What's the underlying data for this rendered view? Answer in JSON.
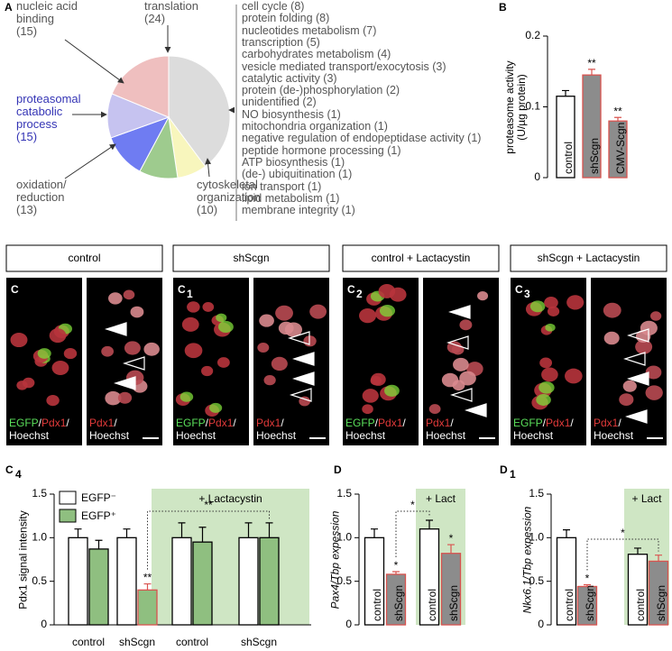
{
  "chart_data": [
    {
      "type": "pie",
      "panel_label": "A",
      "categories": [
        null,
        "cytoskeletal\norganization",
        "oxidation/\nreduction",
        "proteasomal\ncatabolic\nprocess",
        "nucleic acid\nbinding",
        "translation"
      ],
      "values": [
        51,
        10,
        13,
        15,
        15,
        24
      ],
      "value_labels": [
        null,
        "(10)",
        "(13)",
        "(15)",
        "(15)",
        "(24)"
      ],
      "colors": [
        "#dcdcdc",
        "#f8f6bd",
        "#9ecb8e",
        "#6f7cf2",
        "#c6c3f0",
        "#efbfbf"
      ],
      "label_colors": [
        null,
        "#555555",
        "#555555",
        "#3535b5",
        "#555555",
        "#555555"
      ],
      "other_categories": [
        "cell cycle (8)",
        "protein folding (8)",
        "nucleotides metabolism (7)",
        "transcription (5)",
        "carbohydrates metabolism (4)",
        "vesicle mediated transport/exocytosis (3)",
        "catalytic activity (3)",
        "protein (de-)phosphorylation (2)",
        "unidentified (2)",
        "NO biosynthesis (1)",
        "mitochondria organization (1)",
        "negative regulation of endopeptidase activity (1)",
        "peptide hormone processing (1)",
        "ATP biosynthesis (1)",
        "(de-) ubiquitination (1)",
        "ion transport (1)",
        "lipid metabolism (1)",
        "membrane integrity (1)"
      ]
    },
    {
      "type": "bar",
      "panel_label": "B",
      "ylabel": "proteasome activity\n(U/µg protein)",
      "categories": [
        "control",
        "shScgn",
        "CMV-Scgn"
      ],
      "values": [
        0.115,
        0.145,
        0.08
      ],
      "errors": [
        0.008,
        0.008,
        0.005
      ],
      "colors": [
        "#ffffff",
        "#8c8c8c",
        "#8c8c8c"
      ],
      "edge_colors": [
        "#000000",
        "#d9534f",
        "#d9534f"
      ],
      "annotations": [
        null,
        "**",
        "**"
      ],
      "ylim": [
        0,
        0.2
      ],
      "yticks": [
        0,
        0.1,
        0.2
      ]
    },
    {
      "type": "grouped_bar",
      "panel_label": "C",
      "panel_label_sub": "4",
      "ylabel": "Pdx1 signal intensity",
      "categories": [
        "control",
        "shScgn",
        "control",
        "shScgn"
      ],
      "series": [
        {
          "name": "EGFP⁻",
          "color": "#ffffff",
          "edge_colors": [
            "#000000",
            "#000000",
            "#000000",
            "#000000"
          ],
          "values": [
            1.0,
            1.0,
            1.0,
            1.0
          ],
          "errors": [
            0.1,
            0.1,
            0.17,
            0.17
          ],
          "annotations": [
            null,
            null,
            null,
            null
          ]
        },
        {
          "name": "EGFP⁺",
          "color": "#8fbf80",
          "edge_colors": [
            "#000000",
            "#d9534f",
            "#000000",
            "#000000"
          ],
          "values": [
            0.87,
            0.4,
            0.95,
            1.0
          ],
          "errors": [
            0.1,
            0.07,
            0.17,
            0.17
          ],
          "annotations": [
            null,
            "**",
            null,
            null
          ]
        }
      ],
      "ylim": [
        0,
        1.5
      ],
      "yticks": [
        0,
        0.5,
        {
          "value": 1,
          "label": "1.0"
        },
        1.5
      ],
      "shaded_label": "+ Lactacystin",
      "shaded_from": 2,
      "bracket": {
        "series": 1,
        "from": 1,
        "to": 3,
        "text": "**"
      }
    },
    {
      "type": "bar",
      "panel_label": "D",
      "ylabel": "Pax4/Tbp expession",
      "categories": [
        "control",
        "shScgn",
        "control",
        "shScgn"
      ],
      "values": [
        1.0,
        0.58,
        1.1,
        0.82
      ],
      "errors": [
        0.1,
        0.03,
        0.1,
        0.1
      ],
      "colors": [
        "#ffffff",
        "#8c8c8c",
        "#ffffff",
        "#8c8c8c"
      ],
      "edge_colors": [
        "#000000",
        "#d9534f",
        "#000000",
        "#d9534f"
      ],
      "annotations": [
        null,
        "*",
        null,
        "*"
      ],
      "ylim": [
        0,
        1.5
      ],
      "yticks": [
        0,
        0.5,
        {
          "value": 1,
          "label": "1.0"
        },
        1.5
      ],
      "shaded_label": "+ Lact",
      "shaded_from": 2,
      "bracket": {
        "from": 1,
        "to": 2,
        "text": "*"
      }
    },
    {
      "type": "bar",
      "panel_label": "D",
      "panel_label_sub": "1",
      "ylabel": "Nkx6.1/Tbp expession",
      "categories": [
        "control",
        "shScgn",
        "control",
        "shScgn"
      ],
      "values": [
        1.0,
        0.44,
        0.81,
        0.73
      ],
      "errors": [
        0.09,
        0.02,
        0.07,
        0.07
      ],
      "colors": [
        "#ffffff",
        "#8c8c8c",
        "#ffffff",
        "#8c8c8c"
      ],
      "edge_colors": [
        "#000000",
        "#d9534f",
        "#000000",
        "#d9534f"
      ],
      "annotations": [
        null,
        "*",
        null,
        null
      ],
      "ylim": [
        0,
        1.5
      ],
      "yticks": [
        0,
        0.5,
        {
          "value": 1,
          "label": "1.0"
        },
        1.5
      ],
      "shaded_label": "+ Lact",
      "shaded_from": 2,
      "bracket": {
        "from": 1,
        "to": 3,
        "text": "*"
      }
    }
  ],
  "micrographs": [
    {
      "title": "control",
      "label": "C",
      "left_label": [
        {
          "text": "EGFP",
          "color": "#5be05b"
        },
        {
          "text": "/",
          "color": "#ffffff"
        },
        {
          "text": "Pdx1",
          "color": "#e23a3a"
        },
        {
          "text": "/",
          "color": "#ffffff"
        },
        {
          "text": "Hoechst",
          "color": "#ffffff"
        }
      ],
      "right_label": [
        {
          "text": "Pdx1",
          "color": "#e23a3a"
        },
        {
          "text": "/",
          "color": "#ffffff"
        },
        {
          "text": "Hoechst",
          "color": "#ffffff"
        }
      ]
    },
    {
      "title": "shScgn",
      "label": "C",
      "label_sub": "1",
      "left_label": [
        {
          "text": "EGFP",
          "color": "#5be05b"
        },
        {
          "text": "/",
          "color": "#ffffff"
        },
        {
          "text": "Pdx1",
          "color": "#e23a3a"
        },
        {
          "text": "/",
          "color": "#ffffff"
        },
        {
          "text": "Hoechst",
          "color": "#ffffff"
        }
      ],
      "right_label": [
        {
          "text": "Pdx1",
          "color": "#e23a3a"
        },
        {
          "text": "/",
          "color": "#ffffff"
        },
        {
          "text": "Hoechst",
          "color": "#ffffff"
        }
      ]
    },
    {
      "title": "control + Lactacystin",
      "label": "C",
      "label_sub": "2",
      "left_label": [
        {
          "text": "EGFP",
          "color": "#5be05b"
        },
        {
          "text": "/",
          "color": "#ffffff"
        },
        {
          "text": "Pdx1",
          "color": "#e23a3a"
        },
        {
          "text": "/",
          "color": "#ffffff"
        },
        {
          "text": "Hoechst",
          "color": "#ffffff"
        }
      ],
      "right_label": [
        {
          "text": "Pdx1",
          "color": "#e23a3a"
        },
        {
          "text": "/",
          "color": "#ffffff"
        },
        {
          "text": "Hoechst",
          "color": "#ffffff"
        }
      ]
    },
    {
      "title": "shScgn + Lactacystin",
      "label": "C",
      "label_sub": "3",
      "left_label": [
        {
          "text": "EGFP",
          "color": "#5be05b"
        },
        {
          "text": "/",
          "color": "#ffffff"
        },
        {
          "text": "Pdx1",
          "color": "#e23a3a"
        },
        {
          "text": "/",
          "color": "#ffffff"
        },
        {
          "text": "Hoechst",
          "color": "#ffffff"
        }
      ],
      "right_label": [
        {
          "text": "Pdx1",
          "color": "#e23a3a"
        },
        {
          "text": "/",
          "color": "#ffffff"
        },
        {
          "text": "Hoechst",
          "color": "#ffffff"
        }
      ]
    }
  ]
}
